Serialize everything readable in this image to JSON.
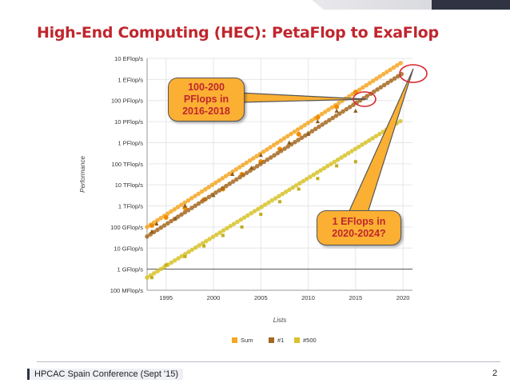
{
  "slide": {
    "title": "High-End Computing (HEC): PetaFlop to ExaFlop",
    "footer_left": "HPCAC Spain Conference (Sept '15)",
    "page_number": "2"
  },
  "callouts": [
    {
      "lines": [
        "100-200",
        "PFlops in",
        "2016-2018"
      ]
    },
    {
      "lines": [
        "1 EFlops in",
        "2020-2024?"
      ]
    }
  ],
  "chart_data": {
    "type": "scatter",
    "xlabel": "Lists",
    "ylabel": "Performance",
    "xlim": [
      1993,
      2021
    ],
    "ylim_exponent": [
      8,
      19
    ],
    "y_scale": "log",
    "x_ticks": [
      1995,
      2000,
      2005,
      2010,
      2015,
      2020
    ],
    "y_ticks": [
      {
        "exp": 19,
        "label": "10 EFlop/s"
      },
      {
        "exp": 18,
        "label": "1 EFlop/s"
      },
      {
        "exp": 17,
        "label": "100 PFlop/s"
      },
      {
        "exp": 16,
        "label": "10 PFlop/s"
      },
      {
        "exp": 15,
        "label": "1 PFlop/s"
      },
      {
        "exp": 14,
        "label": "100 TFlop/s"
      },
      {
        "exp": 13,
        "label": "10 TFlop/s"
      },
      {
        "exp": 12,
        "label": "1 TFlop/s"
      },
      {
        "exp": 11,
        "label": "100 GFlop/s"
      },
      {
        "exp": 10,
        "label": "10 GFlop/s"
      },
      {
        "exp": 9,
        "label": "1 GFlop/s"
      },
      {
        "exp": 8,
        "label": "100 MFlop/s"
      }
    ],
    "legend_position": "bottom",
    "grid": true,
    "series": [
      {
        "name": "Sum",
        "color": "#f5a623",
        "marker": "circle",
        "points": [
          [
            1993.5,
            11.07
          ],
          [
            1995,
            11.45
          ],
          [
            1997,
            11.9
          ],
          [
            1999,
            12.3
          ],
          [
            2001,
            12.8
          ],
          [
            2003,
            13.5
          ],
          [
            2005,
            14.1
          ],
          [
            2007,
            14.7
          ],
          [
            2009,
            15.4
          ],
          [
            2011,
            16.2
          ],
          [
            2013,
            16.7
          ],
          [
            2015,
            17.4
          ]
        ],
        "trend": [
          [
            1993,
            11.0
          ],
          [
            2020,
            18.85
          ]
        ]
      },
      {
        "name": "#1",
        "color": "#a5681f",
        "marker": "triangle",
        "points": [
          [
            1993.5,
            10.78
          ],
          [
            1994,
            11.15
          ],
          [
            1996,
            11.4
          ],
          [
            1997,
            12.0
          ],
          [
            2000,
            12.5
          ],
          [
            2002,
            13.5
          ],
          [
            2004,
            13.8
          ],
          [
            2005,
            14.4
          ],
          [
            2008,
            15.0
          ],
          [
            2010,
            15.4
          ],
          [
            2011,
            16.0
          ],
          [
            2013,
            16.5
          ],
          [
            2015,
            16.5
          ]
        ],
        "trend": [
          [
            1993,
            10.55
          ],
          [
            2020,
            18.3
          ]
        ]
      },
      {
        "name": "#500",
        "color": "#d8c22a",
        "marker": "square",
        "points": [
          [
            1993.5,
            8.6
          ],
          [
            1995,
            9.2
          ],
          [
            1997,
            9.6
          ],
          [
            1999,
            10.1
          ],
          [
            2001,
            10.6
          ],
          [
            2003,
            11.0
          ],
          [
            2005,
            11.6
          ],
          [
            2007,
            12.2
          ],
          [
            2009,
            12.8
          ],
          [
            2011,
            13.3
          ],
          [
            2013,
            13.9
          ],
          [
            2015,
            14.1
          ]
        ],
        "trend": [
          [
            1993,
            8.6
          ],
          [
            2020,
            16.1
          ]
        ]
      }
    ]
  }
}
